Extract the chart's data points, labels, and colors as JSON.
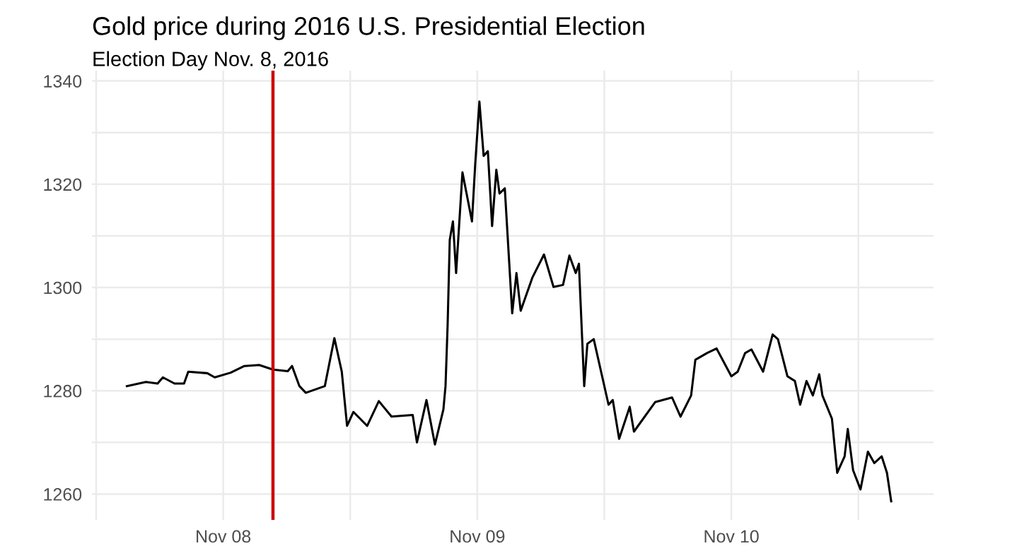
{
  "chart_data": {
    "type": "line",
    "title": "Gold price during 2016 U.S. Presidential Election",
    "subtitle": "Election Day Nov. 8, 2016",
    "x": [
      "2016-11-07T14:54",
      "2016-11-07T16:42",
      "2016-11-07T17:48",
      "2016-11-07T18:18",
      "2016-11-07T19:24",
      "2016-11-07T20:18",
      "2016-11-07T20:42",
      "2016-11-07T22:30",
      "2016-11-07T23:12",
      "2016-11-08T00:42",
      "2016-11-08T02:00",
      "2016-11-08T03:24",
      "2016-11-08T04:42",
      "2016-11-08T06:06",
      "2016-11-08T06:30",
      "2016-11-08T07:12",
      "2016-11-08T07:48",
      "2016-11-08T09:36",
      "2016-11-08T10:30",
      "2016-11-08T11:12",
      "2016-11-08T11:42",
      "2016-11-08T12:18",
      "2016-11-08T13:36",
      "2016-11-08T14:42",
      "2016-11-08T15:54",
      "2016-11-08T17:54",
      "2016-11-08T18:18",
      "2016-11-08T19:12",
      "2016-11-08T20:00",
      "2016-11-08T20:48",
      "2016-11-08T21:00",
      "2016-11-08T21:12",
      "2016-11-08T21:24",
      "2016-11-08T21:42",
      "2016-11-08T22:00",
      "2016-11-08T22:36",
      "2016-11-08T23:30",
      "2016-11-08T23:48",
      "2016-11-09T00:12",
      "2016-11-09T00:36",
      "2016-11-09T01:00",
      "2016-11-09T01:24",
      "2016-11-09T01:48",
      "2016-11-09T02:06",
      "2016-11-09T02:36",
      "2016-11-09T03:18",
      "2016-11-09T03:42",
      "2016-11-09T04:06",
      "2016-11-09T05:12",
      "2016-11-09T06:18",
      "2016-11-09T07:12",
      "2016-11-09T08:06",
      "2016-11-09T08:42",
      "2016-11-09T09:18",
      "2016-11-09T09:36",
      "2016-11-09T10:06",
      "2016-11-09T10:24",
      "2016-11-09T11:00",
      "2016-11-09T12:24",
      "2016-11-09T12:48",
      "2016-11-09T13:24",
      "2016-11-09T14:24",
      "2016-11-09T14:48",
      "2016-11-09T16:48",
      "2016-11-09T18:24",
      "2016-11-09T19:12",
      "2016-11-09T20:12",
      "2016-11-09T20:36",
      "2016-11-09T21:42",
      "2016-11-09T22:36",
      "2016-11-10T00:00",
      "2016-11-10T00:36",
      "2016-11-10T01:18",
      "2016-11-10T01:54",
      "2016-11-10T03:00",
      "2016-11-10T03:54",
      "2016-11-10T04:24",
      "2016-11-10T05:18",
      "2016-11-10T06:00",
      "2016-11-10T06:30",
      "2016-11-10T07:06",
      "2016-11-10T07:42",
      "2016-11-10T08:18",
      "2016-11-10T08:36",
      "2016-11-10T09:30",
      "2016-11-10T10:00",
      "2016-11-10T10:42",
      "2016-11-10T11:00",
      "2016-11-10T11:30",
      "2016-11-10T12:12",
      "2016-11-10T12:54",
      "2016-11-10T13:30",
      "2016-11-10T14:12",
      "2016-11-10T14:42",
      "2016-11-10T15:06"
    ],
    "series": [
      {
        "color": "#000000",
        "values": [
          1280.9,
          1281.7,
          1281.4,
          1282.6,
          1281.4,
          1281.4,
          1283.7,
          1283.4,
          1282.6,
          1283.5,
          1284.8,
          1285.0,
          1284.1,
          1283.8,
          1284.8,
          1280.9,
          1279.6,
          1280.9,
          1290.2,
          1283.7,
          1273.2,
          1275.9,
          1273.2,
          1278.0,
          1275.0,
          1275.3,
          1270.0,
          1278.2,
          1269.6,
          1276.4,
          1280.9,
          1292.8,
          1309.2,
          1312.8,
          1302.8,
          1322.3,
          1312.8,
          1323.7,
          1336.0,
          1325.5,
          1326.4,
          1311.9,
          1322.8,
          1318.2,
          1319.2,
          1295.0,
          1302.8,
          1295.5,
          1301.9,
          1306.4,
          1300.1,
          1300.5,
          1306.2,
          1302.8,
          1304.6,
          1280.9,
          1289.1,
          1290.0,
          1277.3,
          1278.2,
          1270.7,
          1276.9,
          1272.1,
          1277.8,
          1278.7,
          1275.0,
          1279.1,
          1286.0,
          1287.3,
          1288.2,
          1282.8,
          1283.7,
          1287.3,
          1288.0,
          1283.7,
          1290.9,
          1290.0,
          1282.8,
          1281.9,
          1277.3,
          1281.9,
          1279.1,
          1283.2,
          1279.1,
          1274.6,
          1264.1,
          1267.3,
          1272.6,
          1264.6,
          1260.9,
          1268.2,
          1266.0,
          1267.3,
          1264.1,
          1258.6
        ]
      }
    ],
    "xlim": [
      "2016-11-07T11:36",
      "2016-11-10T19:06"
    ],
    "xticks": [
      {
        "value": "2016-11-07T12:00",
        "label": null
      },
      {
        "value": "2016-11-08",
        "label": "Nov 08"
      },
      {
        "value": "2016-11-08T12:00",
        "label": null
      },
      {
        "value": "2016-11-09",
        "label": "Nov 09"
      },
      {
        "value": "2016-11-09T12:00",
        "label": null
      },
      {
        "value": "2016-11-10",
        "label": "Nov 10"
      },
      {
        "value": "2016-11-10T12:00",
        "label": null
      }
    ],
    "ylim": [
      1255,
      1342
    ],
    "yticks": [
      1260,
      {
        "value": 1270,
        "label": null
      },
      1280,
      {
        "value": 1290,
        "label": null
      },
      1300,
      {
        "value": 1310,
        "label": null
      },
      1320,
      {
        "value": 1330,
        "label": null
      },
      1340
    ],
    "ref_lines": [
      {
        "axis": "x",
        "value": "2016-11-08T04:42",
        "color": "#cc0000"
      }
    ],
    "grid": true
  }
}
